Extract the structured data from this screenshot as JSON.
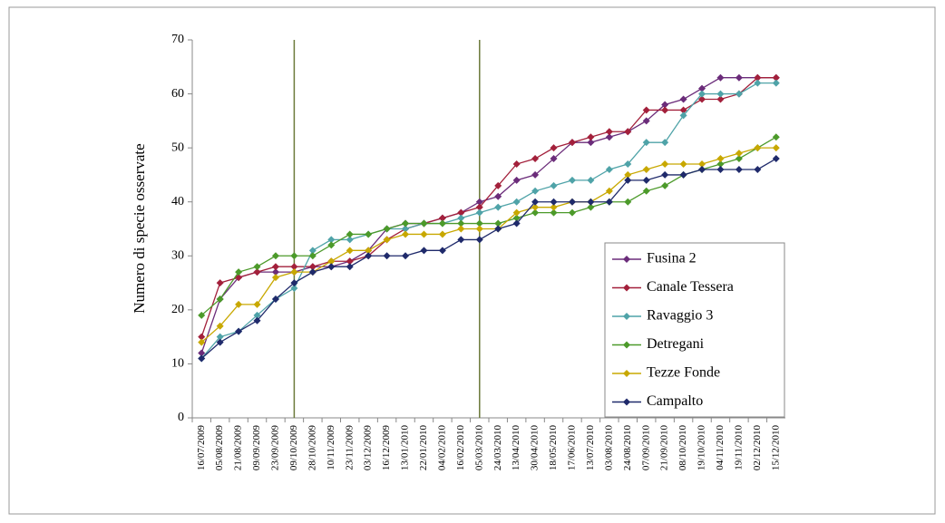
{
  "chart_data": {
    "type": "line",
    "y_label": "Numero di specie osservate",
    "categories": [
      "16/07/2009",
      "05/08/2009",
      "21/08/2009",
      "09/09/2009",
      "23/09/2009",
      "09/10/2009",
      "28/10/2009",
      "10/11/2009",
      "23/11/2009",
      "03/12/2009",
      "16/12/2009",
      "13/01/2010",
      "22/01/2010",
      "04/02/2010",
      "16/02/2010",
      "05/03/2010",
      "24/03/2010",
      "13/04/2010",
      "30/04/2010",
      "18/05/2010",
      "17/06/2010",
      "13/07/2010",
      "03/08/2010",
      "24/08/2010",
      "07/09/2010",
      "21/09/2010",
      "08/10/2010",
      "19/10/2010",
      "04/11/2010",
      "19/11/2010",
      "02/12/2010",
      "15/12/2010"
    ],
    "series": [
      {
        "name": "Fusina 2",
        "color": "#6b2c7a",
        "values": [
          12,
          22,
          26,
          27,
          27,
          27,
          28,
          28,
          29,
          31,
          35,
          36,
          36,
          37,
          38,
          40,
          41,
          44,
          45,
          48,
          51,
          51,
          52,
          53,
          55,
          58,
          59,
          61,
          63,
          63,
          63,
          63
        ]
      },
      {
        "name": "Canale Tessera",
        "color": "#a3203b",
        "values": [
          15,
          25,
          26,
          27,
          28,
          28,
          28,
          29,
          29,
          30,
          33,
          35,
          36,
          37,
          38,
          39,
          43,
          47,
          48,
          50,
          51,
          52,
          53,
          53,
          57,
          57,
          57,
          59,
          59,
          60,
          63,
          63
        ]
      },
      {
        "name": "Ravaggio 3",
        "color": "#4fa3a8",
        "values": [
          11,
          15,
          16,
          19,
          22,
          24,
          31,
          33,
          33,
          34,
          35,
          35,
          36,
          36,
          37,
          38,
          39,
          40,
          42,
          43,
          44,
          44,
          46,
          47,
          51,
          51,
          56,
          60,
          60,
          60,
          62,
          62
        ]
      },
      {
        "name": "Detregani",
        "color": "#4c9a2a",
        "values": [
          19,
          22,
          27,
          28,
          30,
          30,
          30,
          32,
          34,
          34,
          35,
          36,
          36,
          36,
          36,
          36,
          36,
          37,
          38,
          38,
          38,
          39,
          40,
          40,
          42,
          43,
          45,
          46,
          47,
          48,
          50,
          52
        ]
      },
      {
        "name": "Tezze Fonde",
        "color": "#c8a800",
        "values": [
          14,
          17,
          21,
          21,
          26,
          27,
          27,
          29,
          31,
          31,
          33,
          34,
          34,
          34,
          35,
          35,
          35,
          38,
          39,
          39,
          40,
          40,
          42,
          45,
          46,
          47,
          47,
          47,
          48,
          49,
          50,
          50
        ]
      },
      {
        "name": "Campalto",
        "color": "#1f2a6b",
        "values": [
          11,
          14,
          16,
          18,
          22,
          25,
          27,
          28,
          28,
          30,
          30,
          30,
          31,
          31,
          33,
          33,
          35,
          36,
          40,
          40,
          40,
          40,
          40,
          44,
          44,
          45,
          45,
          46,
          46,
          46,
          46,
          48
        ]
      }
    ],
    "ylim": [
      0,
      70
    ],
    "yticks": [
      0,
      10,
      20,
      30,
      40,
      50,
      60,
      70
    ],
    "vertical_lines": [
      "09/10/2009",
      "05/03/2010"
    ],
    "vertical_line_color": "#6b7a3a",
    "legend": "lower-right"
  }
}
